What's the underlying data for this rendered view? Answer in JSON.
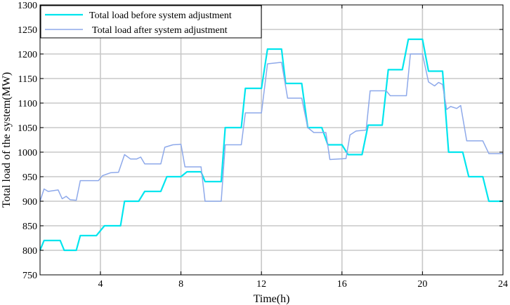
{
  "chart_data": {
    "type": "line",
    "xlabel": "Time(h)",
    "ylabel": "Total load of the system(MW)",
    "xlim": [
      1,
      24
    ],
    "ylim": [
      750,
      1300
    ],
    "xticks": [
      4,
      8,
      12,
      16,
      20,
      24
    ],
    "yticks": [
      750,
      800,
      850,
      900,
      950,
      1000,
      1050,
      1100,
      1150,
      1200,
      1250,
      1300
    ],
    "grid": true,
    "legend_position": "top-left",
    "series": [
      {
        "name": "Total load before system adjustment",
        "color": "#00e5ee",
        "points": [
          [
            1.0,
            800
          ],
          [
            1.2,
            820
          ],
          [
            2.0,
            820
          ],
          [
            2.2,
            800
          ],
          [
            2.8,
            800
          ],
          [
            3.0,
            830
          ],
          [
            3.8,
            830
          ],
          [
            4.2,
            850
          ],
          [
            5.0,
            850
          ],
          [
            5.2,
            900
          ],
          [
            5.9,
            900
          ],
          [
            6.2,
            920
          ],
          [
            7.0,
            920
          ],
          [
            7.3,
            950
          ],
          [
            8.0,
            950
          ],
          [
            8.3,
            960
          ],
          [
            9.0,
            960
          ],
          [
            9.2,
            940
          ],
          [
            10.0,
            940
          ],
          [
            10.2,
            1050
          ],
          [
            11.0,
            1050
          ],
          [
            11.2,
            1130
          ],
          [
            12.0,
            1130
          ],
          [
            12.3,
            1210
          ],
          [
            13.0,
            1210
          ],
          [
            13.2,
            1140
          ],
          [
            14.0,
            1140
          ],
          [
            14.3,
            1050
          ],
          [
            15.0,
            1050
          ],
          [
            15.3,
            1015
          ],
          [
            16.0,
            1015
          ],
          [
            16.3,
            995
          ],
          [
            17.0,
            995
          ],
          [
            17.3,
            1055
          ],
          [
            18.0,
            1055
          ],
          [
            18.3,
            1168
          ],
          [
            19.0,
            1168
          ],
          [
            19.3,
            1230
          ],
          [
            20.0,
            1230
          ],
          [
            20.3,
            1165
          ],
          [
            21.0,
            1165
          ],
          [
            21.3,
            1000
          ],
          [
            22.0,
            1000
          ],
          [
            22.3,
            950
          ],
          [
            23.0,
            950
          ],
          [
            23.3,
            900
          ],
          [
            24.0,
            900
          ]
        ]
      },
      {
        "name": "Total load after system adjustment",
        "color": "#8ea9ea",
        "points": [
          [
            1.0,
            900
          ],
          [
            1.2,
            925
          ],
          [
            1.4,
            920
          ],
          [
            1.9,
            923
          ],
          [
            2.1,
            905
          ],
          [
            2.3,
            910
          ],
          [
            2.5,
            903
          ],
          [
            2.8,
            902
          ],
          [
            3.0,
            942
          ],
          [
            3.9,
            942
          ],
          [
            4.1,
            952
          ],
          [
            4.3,
            955
          ],
          [
            4.5,
            958
          ],
          [
            4.9,
            959
          ],
          [
            5.2,
            995
          ],
          [
            5.5,
            986
          ],
          [
            5.8,
            986
          ],
          [
            6.0,
            990
          ],
          [
            6.2,
            976
          ],
          [
            7.0,
            976
          ],
          [
            7.2,
            1010
          ],
          [
            7.6,
            1015
          ],
          [
            8.0,
            1016
          ],
          [
            8.2,
            970
          ],
          [
            9.0,
            970
          ],
          [
            9.2,
            900
          ],
          [
            10.0,
            900
          ],
          [
            10.2,
            1015
          ],
          [
            11.0,
            1015
          ],
          [
            11.2,
            1080
          ],
          [
            12.0,
            1080
          ],
          [
            12.3,
            1180
          ],
          [
            13.0,
            1183
          ],
          [
            13.3,
            1110
          ],
          [
            14.0,
            1110
          ],
          [
            14.3,
            1050
          ],
          [
            14.6,
            1040
          ],
          [
            15.2,
            1040
          ],
          [
            15.4,
            985
          ],
          [
            16.2,
            987
          ],
          [
            16.4,
            1035
          ],
          [
            16.7,
            1043
          ],
          [
            17.2,
            1045
          ],
          [
            17.4,
            1125
          ],
          [
            18.2,
            1125
          ],
          [
            18.4,
            1115
          ],
          [
            19.2,
            1115
          ],
          [
            19.4,
            1200
          ],
          [
            20.0,
            1200
          ],
          [
            20.3,
            1143
          ],
          [
            20.6,
            1135
          ],
          [
            20.8,
            1142
          ],
          [
            21.0,
            1138
          ],
          [
            21.2,
            1087
          ],
          [
            21.4,
            1093
          ],
          [
            21.7,
            1089
          ],
          [
            21.9,
            1095
          ],
          [
            22.2,
            1023
          ],
          [
            23.0,
            1023
          ],
          [
            23.3,
            997
          ],
          [
            24.0,
            997
          ]
        ]
      }
    ]
  }
}
